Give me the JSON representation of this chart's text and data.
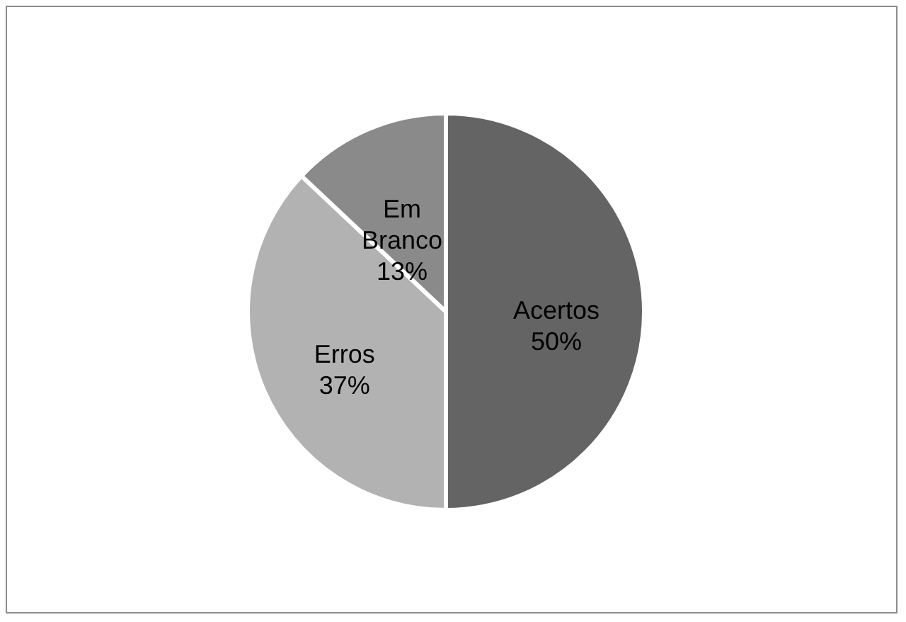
{
  "chart_data": {
    "type": "pie",
    "categories": [
      "Acertos",
      "Erros",
      "Em Branco"
    ],
    "values": [
      50,
      37,
      13
    ],
    "value_labels": [
      "50%",
      "37%",
      "13%"
    ],
    "colors": [
      "#646464",
      "#b2b2b2",
      "#8a8a8a"
    ],
    "legend": false
  }
}
